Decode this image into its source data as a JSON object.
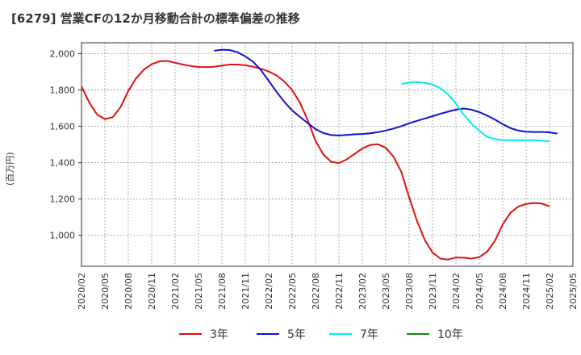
{
  "chart_data": {
    "type": "line",
    "title": "[6279]  営業CFの12か月移動合計の標準偏差の推移",
    "xlabel": "",
    "ylabel": "(百万円)",
    "ylim": [
      830,
      2060
    ],
    "yticks": [
      1000,
      1200,
      1400,
      1600,
      1800,
      2000
    ],
    "ytick_labels": [
      "1,000",
      "1,200",
      "1,400",
      "1,600",
      "1,800",
      "2,000"
    ],
    "xticks": [
      "2020/02",
      "2020/05",
      "2020/08",
      "2020/11",
      "2021/02",
      "2021/05",
      "2021/08",
      "2021/11",
      "2022/02",
      "2022/05",
      "2022/08",
      "2022/11",
      "2023/02",
      "2023/05",
      "2023/08",
      "2023/11",
      "2024/02",
      "2024/05",
      "2024/08",
      "2024/11",
      "2025/02",
      "2025/05"
    ],
    "grid": true,
    "legend_position": "bottom",
    "series": [
      {
        "name": "3年",
        "color": "#dd1111",
        "start": "2020/02",
        "values": [
          1820,
          1730,
          1665,
          1640,
          1650,
          1705,
          1795,
          1865,
          1912,
          1942,
          1958,
          1960,
          1950,
          1940,
          1932,
          1927,
          1926,
          1928,
          1935,
          1940,
          1940,
          1936,
          1928,
          1917,
          1902,
          1880,
          1847,
          1800,
          1730,
          1635,
          1520,
          1445,
          1405,
          1398,
          1418,
          1448,
          1478,
          1498,
          1502,
          1482,
          1433,
          1350,
          1210,
          1080,
          975,
          905,
          872,
          867,
          878,
          877,
          872,
          880,
          910,
          970,
          1060,
          1125,
          1158,
          1173,
          1178,
          1175,
          1160
        ]
      },
      {
        "name": "5年",
        "color": "#1111cc",
        "start": "2021/07",
        "values": [
          2016,
          2022,
          2020,
          2008,
          1985,
          1955,
          1910,
          1850,
          1790,
          1735,
          1688,
          1652,
          1618,
          1585,
          1563,
          1552,
          1550,
          1553,
          1556,
          1558,
          1562,
          1568,
          1577,
          1588,
          1601,
          1617,
          1630,
          1643,
          1656,
          1669,
          1681,
          1692,
          1698,
          1692,
          1678,
          1659,
          1637,
          1612,
          1590,
          1577,
          1570,
          1569,
          1569,
          1567,
          1560
        ]
      },
      {
        "name": "7年",
        "color": "#00eeee",
        "start": "2023/07",
        "values": [
          1832,
          1842,
          1844,
          1840,
          1830,
          1810,
          1775,
          1725,
          1665,
          1615,
          1575,
          1542,
          1530,
          1525,
          1524,
          1524,
          1524,
          1524,
          1522,
          1518
        ]
      },
      {
        "name": "10年",
        "color": "#118811",
        "start": "",
        "values": []
      }
    ]
  }
}
